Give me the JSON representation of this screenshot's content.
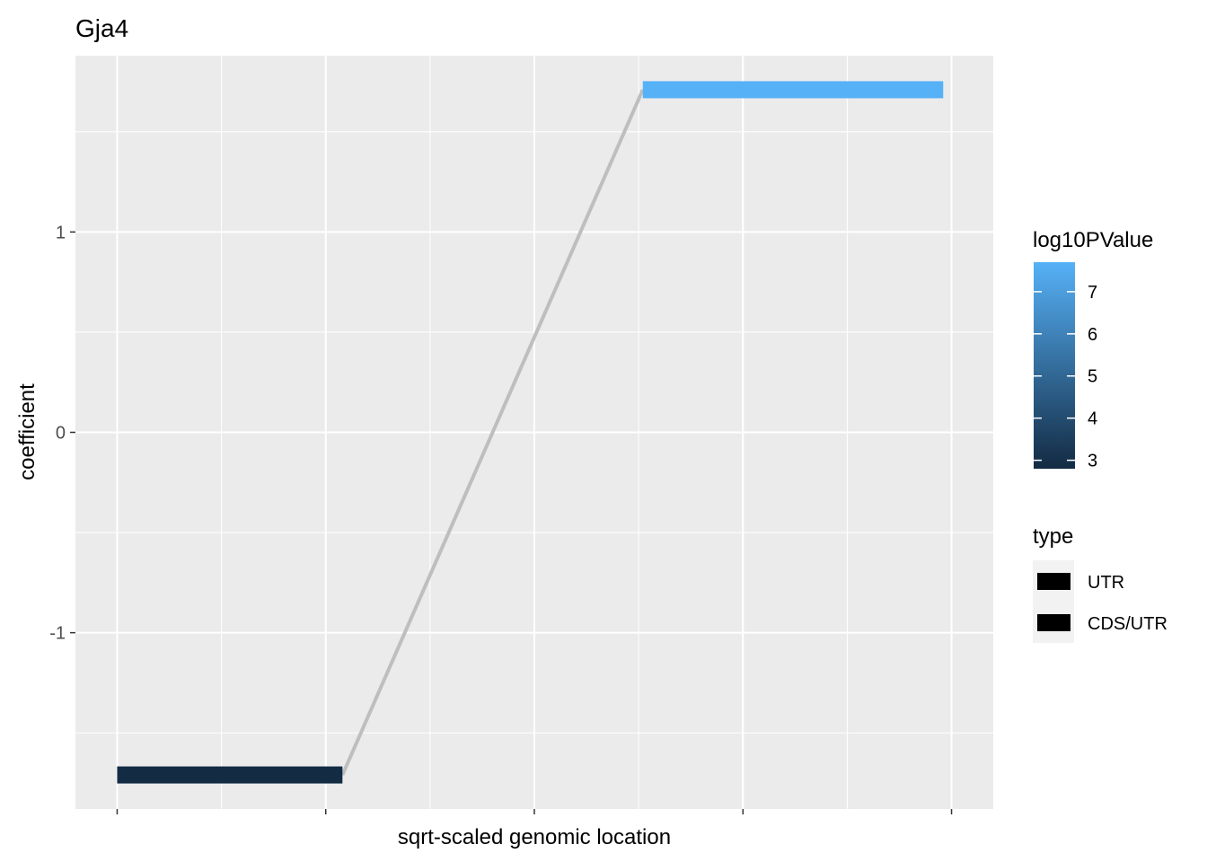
{
  "chart_data": {
    "type": "segment",
    "title": "Gja4",
    "xlabel": "sqrt-scaled genomic location",
    "ylabel": "coefficient",
    "x_tick_labels_shown": false,
    "xlim": [
      -0.05,
      1.05
    ],
    "ylim": [
      -1.88,
      1.88
    ],
    "y_ticks": [
      -1,
      0,
      1
    ],
    "y_tick_labels": [
      "-1",
      "0",
      "1"
    ],
    "grid": true,
    "segments": [
      {
        "x_start": 0.0,
        "x_end": 0.27,
        "coefficient": -1.71,
        "log10PValue": 2.8,
        "type": "UTR"
      },
      {
        "x_start": 0.63,
        "x_end": 0.99,
        "coefficient": 1.71,
        "log10PValue": 7.7,
        "type": "CDS/UTR"
      }
    ],
    "connector_color": "#bebebe",
    "legend_position": "right",
    "color_legend": {
      "title": "log10PValue",
      "min": 2.8,
      "max": 7.7,
      "low_color": "#132b43",
      "high_color": "#56b1f7",
      "ticks": [
        3,
        4,
        5,
        6,
        7
      ],
      "tick_labels": [
        "3",
        "4",
        "5",
        "6",
        "7"
      ]
    },
    "type_legend": {
      "title": "type",
      "entries": [
        "UTR",
        "CDS/UTR"
      ],
      "key_color": "#000000"
    },
    "panel_background": "#ebebeb",
    "grid_color": "#ffffff"
  }
}
